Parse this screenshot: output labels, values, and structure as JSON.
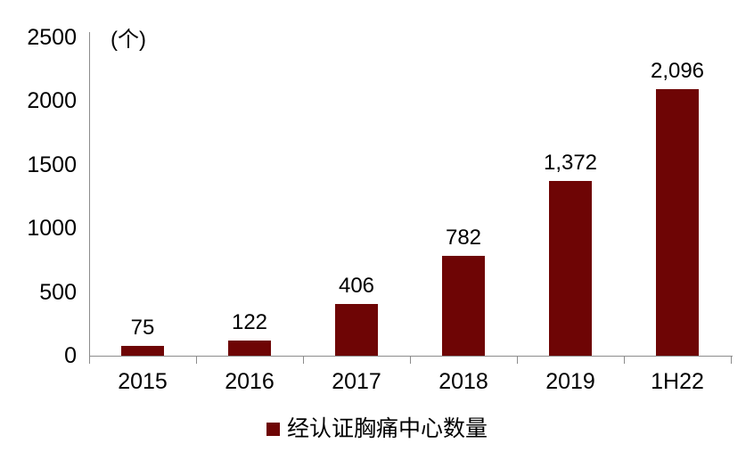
{
  "chart_data": {
    "type": "bar",
    "title": "",
    "unit_label": "(个)",
    "categories": [
      "2015",
      "2016",
      "2017",
      "2018",
      "2019",
      "1H22"
    ],
    "series": [
      {
        "name": "经认证胸痛中心数量",
        "values": [
          75,
          122,
          406,
          782,
          1372,
          2096
        ],
        "value_labels": [
          "75",
          "122",
          "406",
          "782",
          "1,372",
          "2,096"
        ]
      }
    ],
    "xlabel": "",
    "ylabel": "",
    "ylim": [
      0,
      2500
    ],
    "y_tick_step": 500,
    "y_tick_labels": [
      "0",
      "500",
      "1000",
      "1500",
      "2000",
      "2500"
    ],
    "grid": false,
    "legend_position": "bottom",
    "colors": {
      "bar": "#6e0505",
      "axis": "#8c8c8c",
      "text": "#000000",
      "background": "#ffffff"
    }
  },
  "legend": {
    "label": "经认证胸痛中心数量"
  }
}
